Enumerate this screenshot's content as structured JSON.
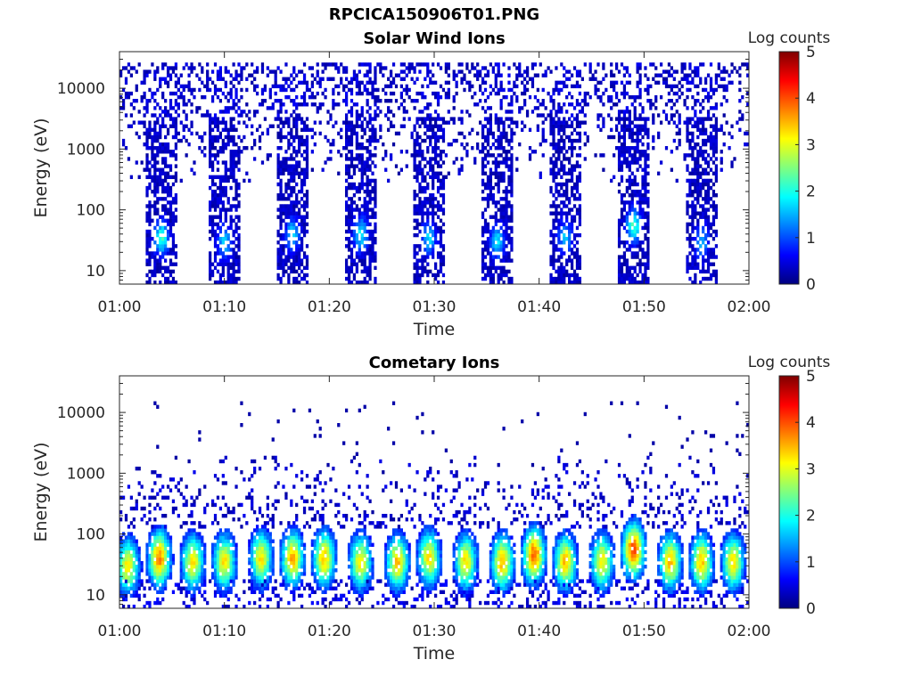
{
  "figure": {
    "title": "RPCICA150906T01.PNG"
  },
  "colormap": {
    "name": "jet",
    "stops": [
      "#00007f",
      "#0000ff",
      "#007fff",
      "#00ffff",
      "#7fff7f",
      "#ffff00",
      "#ff7f00",
      "#ff0000",
      "#7f0000"
    ]
  },
  "chart_data": [
    {
      "type": "heatmap",
      "title": "Solar Wind Ions",
      "xlabel": "Time",
      "ylabel": "Energy (eV)",
      "x_ticks": [
        "01:00",
        "01:10",
        "01:20",
        "01:30",
        "01:40",
        "01:50",
        "02:00"
      ],
      "x_range": [
        "01:00",
        "02:00"
      ],
      "y_scale": "log",
      "y_ticks": [
        "10",
        "100",
        "1000",
        "10000"
      ],
      "y_range": [
        6,
        40000
      ],
      "colorbar": {
        "label": "Log counts",
        "range": [
          0,
          5
        ],
        "ticks": [
          "0",
          "1",
          "2",
          "3",
          "4",
          "5"
        ]
      },
      "bursts": [
        {
          "start": "01:02.5",
          "end": "01:05.5",
          "peak_time": "01:04",
          "peak_energy_eV": 35,
          "peak_log_counts": 2.0
        },
        {
          "start": "01:08.5",
          "end": "01:11.5",
          "peak_time": "01:10",
          "peak_energy_eV": 30,
          "peak_log_counts": 1.5
        },
        {
          "start": "01:15.0",
          "end": "01:18.0",
          "peak_time": "01:16.5",
          "peak_energy_eV": 40,
          "peak_log_counts": 1.5
        },
        {
          "start": "01:21.5",
          "end": "01:24.5",
          "peak_time": "01:23",
          "peak_energy_eV": 40,
          "peak_log_counts": 1.7
        },
        {
          "start": "01:28.0",
          "end": "01:31.0",
          "peak_time": "01:29.5",
          "peak_energy_eV": 35,
          "peak_log_counts": 1.5
        },
        {
          "start": "01:34.5",
          "end": "01:37.5",
          "peak_time": "01:36",
          "peak_energy_eV": 30,
          "peak_log_counts": 1.6
        },
        {
          "start": "01:41.0",
          "end": "01:44.0",
          "peak_time": "01:42.5",
          "peak_energy_eV": 35,
          "peak_log_counts": 1.4
        },
        {
          "start": "01:47.5",
          "end": "01:50.5",
          "peak_time": "01:49",
          "peak_energy_eV": 55,
          "peak_log_counts": 2.0
        },
        {
          "start": "01:54.0",
          "end": "01:57.0",
          "peak_time": "01:55.5",
          "peak_energy_eV": 30,
          "peak_log_counts": 1.4
        }
      ]
    },
    {
      "type": "heatmap",
      "title": "Cometary Ions",
      "xlabel": "Time",
      "ylabel": "Energy (eV)",
      "x_ticks": [
        "01:00",
        "01:10",
        "01:20",
        "01:30",
        "01:40",
        "01:50",
        "02:00"
      ],
      "x_range": [
        "01:00",
        "02:00"
      ],
      "y_scale": "log",
      "y_ticks": [
        "10",
        "100",
        "1000",
        "10000"
      ],
      "y_range": [
        6,
        40000
      ],
      "colorbar": {
        "label": "Log counts",
        "range": [
          0,
          5
        ],
        "ticks": [
          "0",
          "1",
          "2",
          "3",
          "4",
          "5"
        ]
      },
      "bursts": [
        {
          "peak_time": "01:00.8",
          "peak_energy_eV": 30,
          "peak_log_counts": 3.0
        },
        {
          "peak_time": "01:03.8",
          "peak_energy_eV": 40,
          "peak_log_counts": 3.5
        },
        {
          "peak_time": "01:07.0",
          "peak_energy_eV": 35,
          "peak_log_counts": 3.0
        },
        {
          "peak_time": "01:10.0",
          "peak_energy_eV": 35,
          "peak_log_counts": 3.0
        },
        {
          "peak_time": "01:13.5",
          "peak_energy_eV": 40,
          "peak_log_counts": 3.0
        },
        {
          "peak_time": "01:16.5",
          "peak_energy_eV": 40,
          "peak_log_counts": 3.3
        },
        {
          "peak_time": "01:19.5",
          "peak_energy_eV": 40,
          "peak_log_counts": 3.2
        },
        {
          "peak_time": "01:23.0",
          "peak_energy_eV": 35,
          "peak_log_counts": 3.0
        },
        {
          "peak_time": "01:26.5",
          "peak_energy_eV": 35,
          "peak_log_counts": 3.2
        },
        {
          "peak_time": "01:29.5",
          "peak_energy_eV": 40,
          "peak_log_counts": 3.0
        },
        {
          "peak_time": "01:33.0",
          "peak_energy_eV": 35,
          "peak_log_counts": 3.0
        },
        {
          "peak_time": "01:36.5",
          "peak_energy_eV": 35,
          "peak_log_counts": 3.3
        },
        {
          "peak_time": "01:39.5",
          "peak_energy_eV": 45,
          "peak_log_counts": 3.7
        },
        {
          "peak_time": "01:42.5",
          "peak_energy_eV": 35,
          "peak_log_counts": 3.2
        },
        {
          "peak_time": "01:46.0",
          "peak_energy_eV": 35,
          "peak_log_counts": 3.0
        },
        {
          "peak_time": "01:49.0",
          "peak_energy_eV": 55,
          "peak_log_counts": 3.8
        },
        {
          "peak_time": "01:52.5",
          "peak_energy_eV": 35,
          "peak_log_counts": 3.2
        },
        {
          "peak_time": "01:55.5",
          "peak_energy_eV": 35,
          "peak_log_counts": 3.2
        },
        {
          "peak_time": "01:58.5",
          "peak_energy_eV": 35,
          "peak_log_counts": 3.0
        }
      ]
    }
  ]
}
